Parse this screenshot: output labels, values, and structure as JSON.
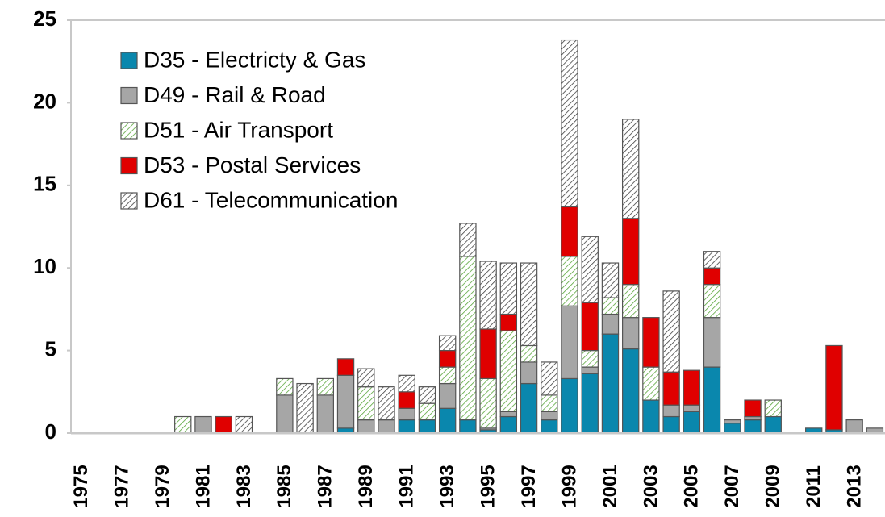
{
  "chart_data": {
    "type": "stacked-bar",
    "categories": [
      "1975",
      null,
      "1977",
      null,
      "1979",
      null,
      "1981",
      null,
      "1983",
      null,
      "1985",
      null,
      "1987",
      null,
      "1989",
      null,
      "1991",
      null,
      "1993",
      null,
      "1995",
      null,
      "1997",
      null,
      "1999",
      null,
      "2001",
      null,
      "2003",
      null,
      "2005",
      null,
      "2007",
      null,
      "2009",
      null,
      "2011",
      null,
      "2013",
      null
    ],
    "series": [
      {
        "name": "D35 - Electricty & Gas",
        "color": "#0a87ad",
        "hatch": false,
        "values": [
          0,
          0,
          0,
          0,
          0,
          0,
          0,
          0,
          0,
          0,
          0,
          0,
          0,
          0.3,
          0,
          0,
          0.8,
          0.8,
          1.5,
          0.8,
          0.2,
          1,
          3,
          0.8,
          3.3,
          3.6,
          6,
          5.1,
          2,
          1,
          1.3,
          4,
          0.6,
          0.8,
          1,
          0,
          0.3,
          0.2,
          0,
          0
        ]
      },
      {
        "name": "D49 - Rail & Road",
        "color": "#a6a6a6",
        "hatch": false,
        "values": [
          0,
          0,
          0,
          0,
          0,
          0,
          1,
          0,
          0,
          0,
          2.3,
          0,
          2.3,
          3.2,
          0.8,
          0.8,
          0.7,
          0,
          1.5,
          0,
          0.1,
          0.3,
          1.3,
          0.5,
          4.4,
          0.4,
          1.2,
          1.9,
          0,
          0.7,
          0.4,
          3,
          0.2,
          0.2,
          0,
          0,
          0,
          0,
          0.8,
          0.3
        ]
      },
      {
        "name": "D51 - Air Transport",
        "color": "#5aa63c",
        "hatch": true,
        "values": [
          0,
          0,
          0,
          0,
          0,
          1,
          0,
          0,
          0,
          0,
          1,
          0,
          1,
          0,
          2,
          0,
          0,
          1,
          1,
          9.9,
          3,
          4.9,
          1,
          1,
          3,
          1,
          1,
          2,
          2,
          0,
          0,
          2,
          0,
          0,
          1,
          0,
          0,
          0,
          0,
          0
        ]
      },
      {
        "name": "D53 - Postal Services",
        "color": "#e00000",
        "hatch": false,
        "values": [
          0,
          0,
          0,
          0,
          0,
          0,
          0,
          1,
          0,
          0,
          0,
          0,
          0,
          1,
          0,
          0,
          1,
          0,
          1,
          0,
          3,
          1,
          0,
          0,
          3,
          2.9,
          0,
          4,
          3,
          2,
          2.1,
          1,
          0,
          1,
          0,
          0,
          0,
          5.1,
          0,
          0
        ]
      },
      {
        "name": "D61 - Telecommunication",
        "color": "#404040",
        "hatch": true,
        "values": [
          0,
          0,
          0,
          0,
          0,
          0,
          0,
          0,
          1,
          0,
          0,
          3,
          0,
          0,
          1.1,
          2,
          1,
          1,
          0.9,
          2,
          4.1,
          3.1,
          5,
          2,
          10.1,
          4,
          2.1,
          6,
          0,
          4.9,
          0,
          1,
          0,
          0,
          0,
          0,
          0,
          0,
          0,
          0
        ]
      }
    ],
    "ylim": [
      0,
      25
    ],
    "yticks": [
      0,
      5,
      10,
      15,
      20,
      25
    ],
    "grid": false,
    "legend": "top-left"
  }
}
